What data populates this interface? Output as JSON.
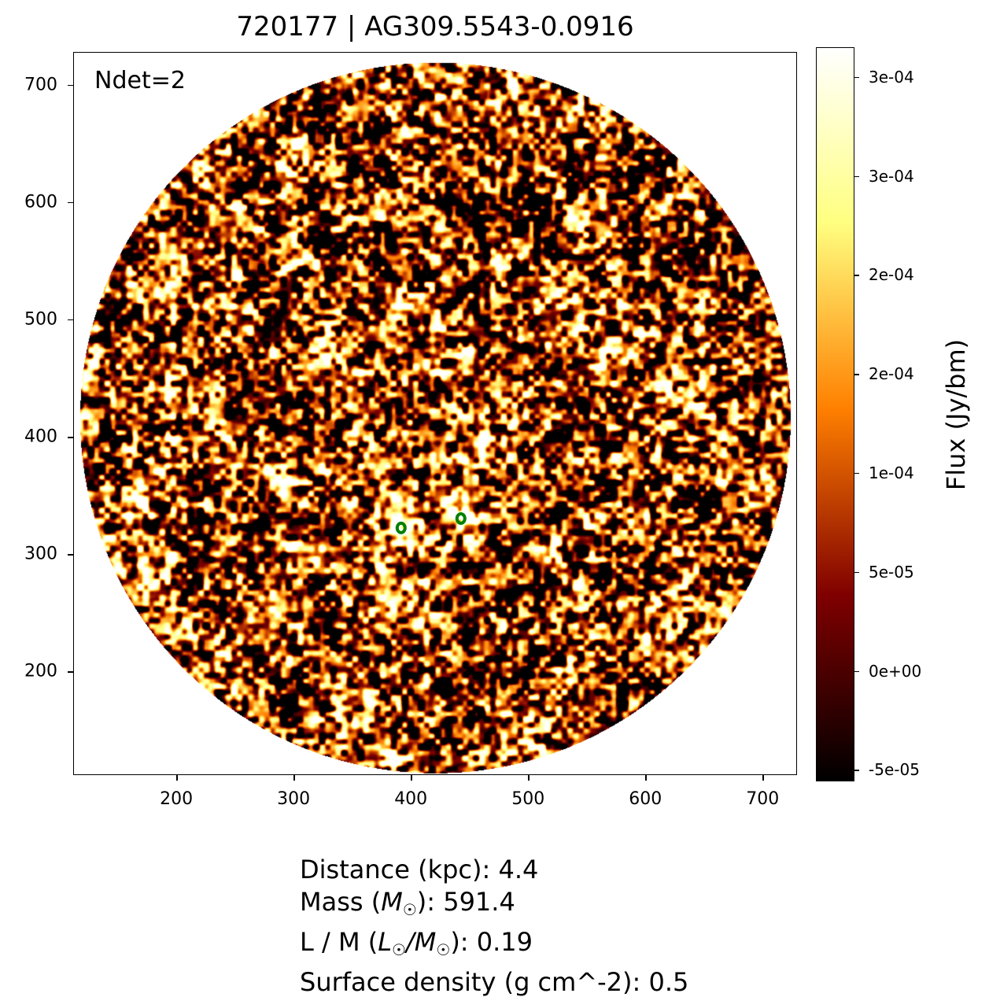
{
  "title": "720177 | AG309.5543-0.0916",
  "annotation": "Ndet=2",
  "chart_data": {
    "type": "heatmap",
    "title": "720177 | AG309.5543-0.0916",
    "xlabel": "",
    "ylabel": "",
    "xlim": [
      112,
      728
    ],
    "ylim": [
      113,
      728
    ],
    "xticks": [
      200,
      300,
      400,
      500,
      600,
      700
    ],
    "xtick_labels": [
      "200",
      "300",
      "400",
      "500",
      "600",
      "700"
    ],
    "yticks": [
      200,
      300,
      400,
      500,
      600,
      700
    ],
    "ytick_labels": [
      "200",
      "300",
      "400",
      "500",
      "600",
      "700"
    ],
    "colormap": "afmhot",
    "colorbar": {
      "label": "Flux (Jy/bm)",
      "range": [
        -5.5e-05,
        0.000315
      ],
      "ticks": [
        -5e-05,
        0,
        5e-05,
        0.0001,
        0.00015,
        0.0002,
        0.00025,
        0.0003
      ],
      "tick_labels": [
        "-5e-05",
        "0e+00",
        "5e-05",
        "1e-04",
        "2e-04",
        "2e-04",
        "3e-04",
        "3e-04"
      ]
    },
    "image_footprint": {
      "shape": "circle",
      "center": [
        420,
        417
      ],
      "radius": 303
    },
    "detections": [
      {
        "x": 391,
        "y": 323,
        "color": "#008000"
      },
      {
        "x": 442,
        "y": 331,
        "color": "#008000"
      }
    ]
  },
  "info": {
    "distance": "Distance (kpc): 4.4",
    "mass_pre": "Mass (",
    "mass_sym": "M",
    "mass_post": "): 591.4",
    "lm_pre": "L / M (",
    "lm_sym1": "L",
    "lm_mid": "/",
    "lm_sym2": "M",
    "lm_post": "): 0.19",
    "sun": "☉",
    "surface": "Surface density (g cm^-2): 0.5"
  }
}
